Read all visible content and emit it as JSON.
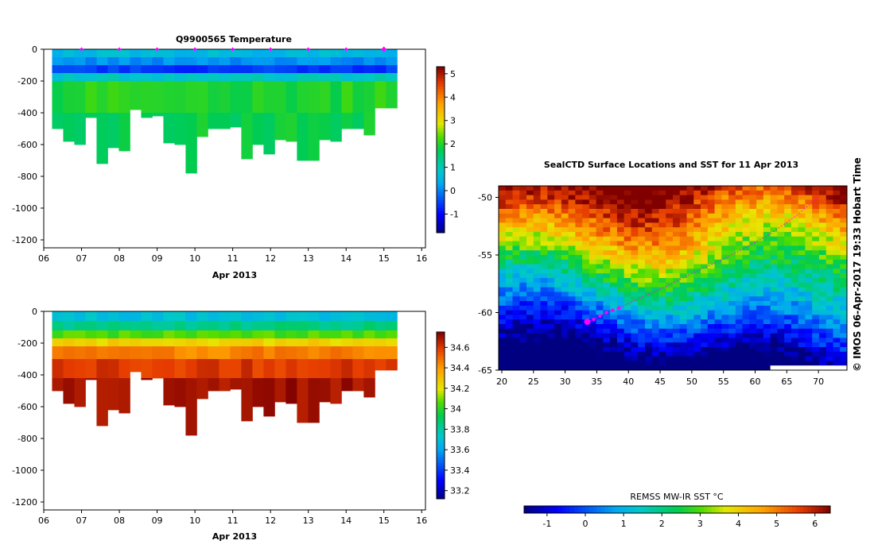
{
  "chart_data": [
    {
      "type": "heatmap",
      "title": "Q9900565  Temperature",
      "xlabel": "Apr 2013",
      "ylabel": "",
      "x_ticks": [
        "06",
        "07",
        "08",
        "09",
        "10",
        "11",
        "12",
        "13",
        "14",
        "15",
        "16"
      ],
      "xlim": [
        6,
        16.1
      ],
      "y_ticks": [
        "0",
        "-200",
        "-400",
        "-600",
        "-800",
        "-1000",
        "-1200"
      ],
      "ylim": [
        -1250,
        0
      ],
      "colorbar": {
        "ticks": [
          "-1",
          "0",
          "1",
          "2",
          "3",
          "4",
          "5"
        ],
        "range": [
          -1.8,
          5.3
        ]
      },
      "surface_markers": [
        7,
        8,
        9,
        10,
        11,
        12,
        13,
        14,
        15
      ],
      "profile_depths": [
        500,
        580,
        600,
        430,
        720,
        620,
        640,
        380,
        430,
        420,
        590,
        600,
        780,
        550,
        500,
        500,
        490,
        690,
        600,
        660,
        570,
        580,
        700,
        700,
        570,
        580,
        500,
        500,
        540,
        370,
        370
      ],
      "layers": [
        {
          "from_depth": 0,
          "to_depth": 50,
          "value": 0.6
        },
        {
          "from_depth": 50,
          "to_depth": 100,
          "value": 0.1
        },
        {
          "from_depth": 100,
          "to_depth": 150,
          "value": -0.6
        },
        {
          "from_depth": 150,
          "to_depth": 200,
          "value": 0.9
        },
        {
          "from_depth": 200,
          "to_depth": 400,
          "value": 2.0
        },
        {
          "from_depth": 400,
          "to_depth": 800,
          "value": 1.8
        }
      ]
    },
    {
      "type": "heatmap",
      "title": "",
      "xlabel": "Apr 2013",
      "ylabel": "",
      "x_ticks": [
        "06",
        "07",
        "08",
        "09",
        "10",
        "11",
        "12",
        "13",
        "14",
        "15",
        "16"
      ],
      "xlim": [
        6,
        16.1
      ],
      "y_ticks": [
        "0",
        "-200",
        "-400",
        "-600",
        "-800",
        "-1000",
        "-1200"
      ],
      "ylim": [
        -1250,
        0
      ],
      "colorbar": {
        "ticks": [
          "33.2",
          "33.4",
          "33.6",
          "33.8",
          "34",
          "34.2",
          "34.4",
          "34.6"
        ],
        "range": [
          33.12,
          34.75
        ]
      },
      "profile_depths": [
        500,
        580,
        600,
        430,
        720,
        620,
        640,
        380,
        430,
        420,
        590,
        600,
        780,
        550,
        500,
        500,
        490,
        690,
        600,
        660,
        570,
        580,
        700,
        700,
        570,
        580,
        500,
        500,
        540,
        370,
        370
      ],
      "layers": [
        {
          "from_depth": 0,
          "to_depth": 60,
          "value": 33.7
        },
        {
          "from_depth": 60,
          "to_depth": 120,
          "value": 33.85
        },
        {
          "from_depth": 120,
          "to_depth": 170,
          "value": 34.05
        },
        {
          "from_depth": 170,
          "to_depth": 220,
          "value": 34.25
        },
        {
          "from_depth": 220,
          "to_depth": 300,
          "value": 34.45
        },
        {
          "from_depth": 300,
          "to_depth": 420,
          "value": 34.6
        },
        {
          "from_depth": 420,
          "to_depth": 800,
          "value": 34.7
        }
      ]
    },
    {
      "type": "heatmap",
      "title": "SealCTD Surface Locations and SST for 11 Apr 2013",
      "xlabel": "",
      "ylabel": "",
      "x_ticks": [
        "20",
        "25",
        "30",
        "35",
        "40",
        "45",
        "50",
        "55",
        "60",
        "65",
        "70"
      ],
      "xlim": [
        19.5,
        74.5
      ],
      "y_ticks": [
        "-50",
        "-55",
        "-60",
        "-65"
      ],
      "ylim": [
        -65,
        -49
      ],
      "colorbar": {
        "label": "REMSS MW-IR SST °C",
        "ticks": [
          "-1",
          "0",
          "1",
          "2",
          "3",
          "4",
          "5",
          "6"
        ],
        "range": [
          -1.6,
          6.4
        ]
      },
      "track": [
        [
          33.5,
          -60.8
        ],
        [
          34.5,
          -60.6
        ],
        [
          35.5,
          -60.3
        ],
        [
          36.5,
          -60.0
        ],
        [
          37.5,
          -59.8
        ],
        [
          38.5,
          -59.6
        ],
        [
          42,
          -58.7
        ],
        [
          46,
          -57.7
        ],
        [
          50,
          -56.6
        ],
        [
          54,
          -55.6
        ],
        [
          58,
          -54.5
        ],
        [
          62,
          -53.3
        ],
        [
          66,
          -51.8
        ],
        [
          70,
          -50.0
        ]
      ],
      "track_emphasis": [
        [
          33.5,
          -60.8
        ],
        [
          34.5,
          -60.6
        ],
        [
          35.5,
          -60.3
        ],
        [
          36.5,
          -60.0
        ],
        [
          37.5,
          -59.8
        ],
        [
          38.5,
          -59.6
        ]
      ]
    }
  ],
  "credit": "©  IMOS 06-Apr-2017 19:33 Hobart Time",
  "colors": {
    "marker": "#ff00ff",
    "background": "#ffffff",
    "missing": "#ffffff"
  }
}
